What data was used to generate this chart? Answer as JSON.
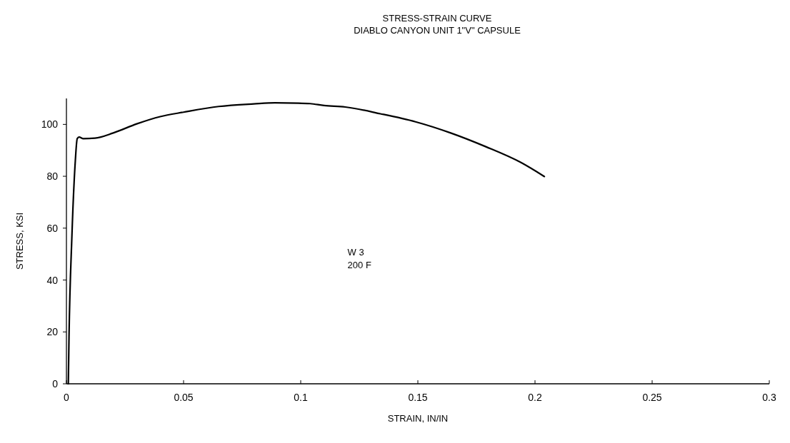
{
  "chart_data": {
    "type": "line",
    "title": "STRESS-STRAIN CURVE",
    "subtitle": "DIABLO CANYON  UNIT 1\"V\" CAPSULE",
    "xlabel": "STRAIN,  IN/IN",
    "ylabel": "STRESS, KSI",
    "annotations": [
      "W 3",
      "200 F"
    ],
    "x": [
      0.0008,
      0.0011,
      0.0023,
      0.0038,
      0.0046,
      0.0054,
      0.0072,
      0.0122,
      0.02,
      0.03,
      0.04,
      0.05,
      0.065,
      0.08,
      0.089,
      0.099,
      0.104,
      0.11,
      0.119,
      0.134,
      0.149,
      0.164,
      0.179,
      0.194,
      0.204
    ],
    "series": [
      {
        "color": "#000000",
        "values": [
          0,
          18,
          56,
          86,
          94.5,
          95.1,
          94.5,
          94.7,
          96.7,
          100.2,
          103,
          104.7,
          106.9,
          107.9,
          108.3,
          108.2,
          108,
          107.3,
          106.7,
          104.1,
          101,
          96.7,
          91.4,
          85.3,
          79.9
        ]
      }
    ],
    "xlim": [
      0,
      0.3
    ],
    "ylim": [
      0,
      110
    ],
    "xticks": [
      0,
      0.05,
      0.1,
      0.15,
      0.2,
      0.25,
      0.3
    ],
    "yticks": [
      0,
      20,
      40,
      60,
      80,
      100
    ],
    "grid": false,
    "marker": "none",
    "line_style": "solid"
  }
}
